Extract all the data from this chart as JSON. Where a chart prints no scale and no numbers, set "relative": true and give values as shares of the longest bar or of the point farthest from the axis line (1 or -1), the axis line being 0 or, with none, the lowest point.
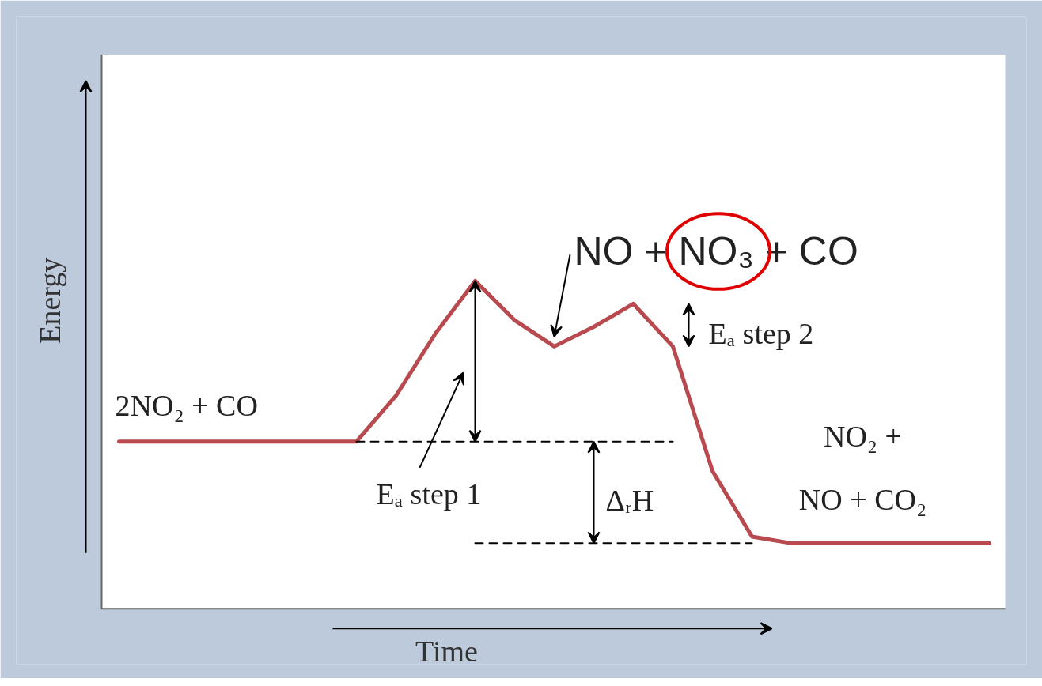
{
  "chart_data": {
    "type": "line",
    "relative": true,
    "xlabel": "Time",
    "ylabel": "Energy",
    "categories": [
      null,
      null,
      null,
      null,
      null,
      null,
      null,
      null,
      null,
      null,
      null,
      null,
      null,
      null,
      null,
      null,
      null,
      null,
      null,
      null,
      null,
      null,
      null
    ],
    "series": [
      {
        "color": "#b84a4f",
        "values": [
          0.51,
          0.51,
          0.51,
          0.51,
          0.51,
          0.51,
          0.51,
          0.65,
          0.84,
          1.0,
          0.88,
          0.8,
          0.86,
          0.93,
          0.8,
          0.42,
          0.22,
          0.2,
          0.2,
          0.2,
          0.2,
          0.2,
          0.2
        ]
      },
      {
        "color": "#000000",
        "line_style": "dashed",
        "values": [
          null,
          null,
          null,
          null,
          null,
          null,
          0.51,
          0.51,
          0.51,
          0.51,
          0.51,
          0.51,
          0.51,
          0.51,
          0.51,
          null,
          null,
          null,
          null,
          null,
          null,
          null,
          null
        ]
      },
      {
        "color": "#000000",
        "line_style": "dashed",
        "values": [
          null,
          null,
          null,
          null,
          null,
          null,
          null,
          null,
          null,
          0.2,
          0.2,
          0.2,
          0.2,
          0.2,
          0.2,
          0.2,
          0.2,
          null,
          null,
          null,
          null,
          null,
          null
        ]
      }
    ],
    "annotations": [
      "2NO₂ + CO",
      "NO + NO₃ + CO",
      "Eₐ step 2",
      "Eₐ step 1",
      "ΔᵣH",
      "NO₂ +\nNO + CO₂"
    ]
  }
}
